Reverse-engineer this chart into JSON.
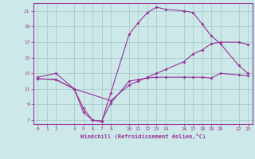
{
  "xlabel": "Windchill (Refroidissement éolien,°C)",
  "bg_color": "#cce8e8",
  "grid_color": "#aacccc",
  "line_color": "#993399",
  "spine_color": "#993399",
  "xlim": [
    -0.5,
    23.5
  ],
  "ylim": [
    6.5,
    22.0
  ],
  "xticks": [
    0,
    1,
    2,
    4,
    5,
    6,
    7,
    8,
    10,
    11,
    12,
    13,
    14,
    16,
    17,
    18,
    19,
    20,
    22,
    23
  ],
  "yticks": [
    7,
    9,
    11,
    13,
    15,
    17,
    19,
    21
  ],
  "line1_x": [
    0,
    2,
    4,
    5,
    6,
    7,
    8,
    10,
    11,
    12,
    13,
    14,
    16,
    17,
    18,
    19,
    20,
    22,
    23
  ],
  "line1_y": [
    12.5,
    13.0,
    11.0,
    8.5,
    7.0,
    6.8,
    10.5,
    18.0,
    19.5,
    20.8,
    21.5,
    21.2,
    21.0,
    20.8,
    19.3,
    17.8,
    16.8,
    14.0,
    13.0
  ],
  "line2_x": [
    0,
    2,
    4,
    5,
    6,
    7,
    8,
    10,
    11,
    12,
    13,
    14,
    16,
    17,
    18,
    19,
    20,
    22,
    23
  ],
  "line2_y": [
    12.3,
    12.2,
    11.0,
    8.0,
    7.0,
    6.9,
    9.2,
    12.0,
    12.2,
    12.4,
    12.5,
    12.5,
    12.5,
    12.5,
    12.5,
    12.4,
    13.0,
    12.8,
    12.7
  ],
  "line3_x": [
    0,
    2,
    4,
    8,
    10,
    11,
    12,
    13,
    14,
    16,
    17,
    18,
    19,
    20,
    22,
    23
  ],
  "line3_y": [
    12.3,
    12.2,
    11.0,
    9.5,
    11.5,
    12.0,
    12.5,
    13.0,
    13.5,
    14.5,
    15.5,
    16.0,
    16.8,
    17.0,
    17.0,
    16.7
  ]
}
